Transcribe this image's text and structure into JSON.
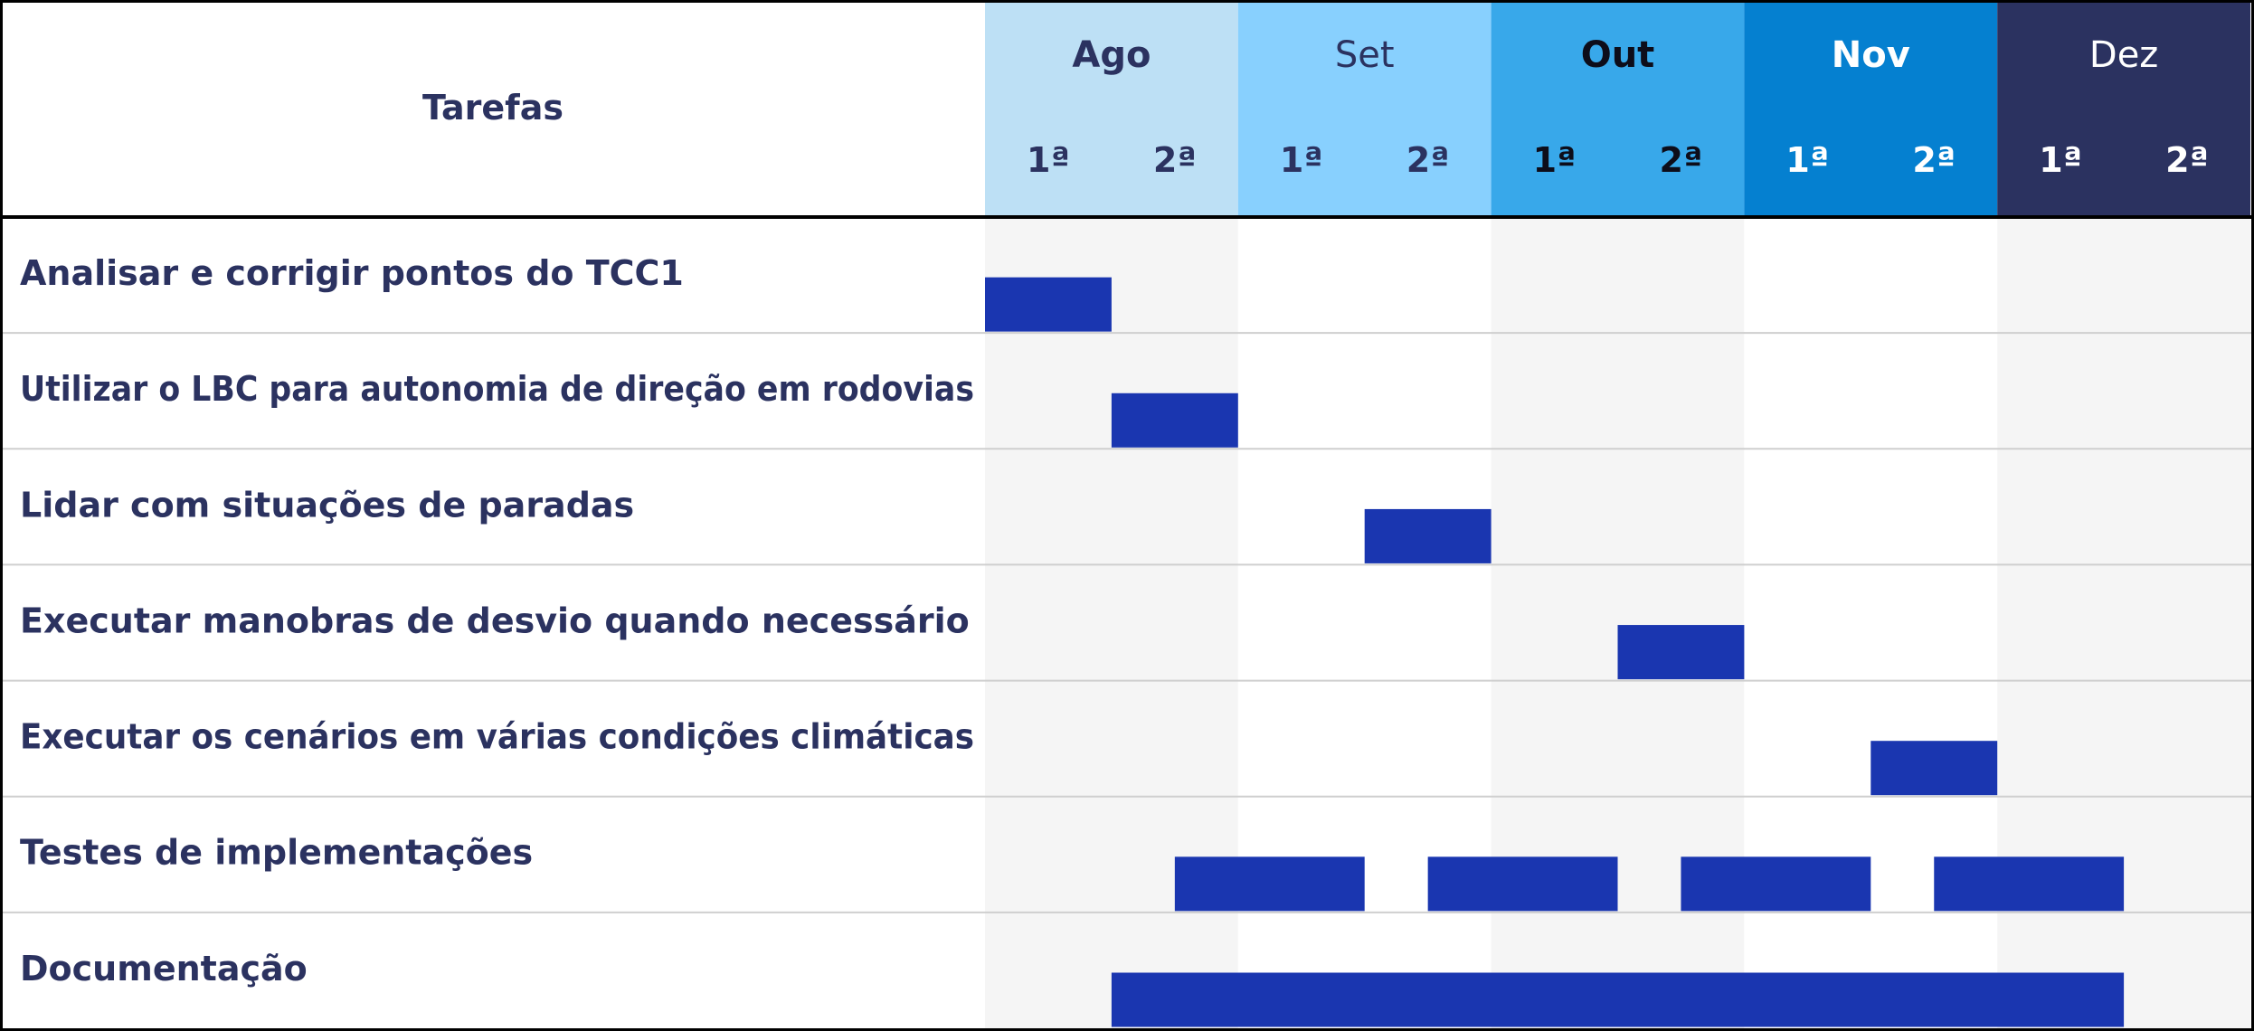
{
  "chart_data": {
    "type": "gantt",
    "task_header": "Tarefas",
    "months": [
      {
        "label": "Ago",
        "color": "#bde0f5",
        "text_color": "#2b3260",
        "bold": true
      },
      {
        "label": "Set",
        "color": "#88d0fe",
        "text_color": "#2b3260",
        "bold": false
      },
      {
        "label": "Out",
        "color": "#38a8ea",
        "text_color": "#0d0d1a",
        "bold": true
      },
      {
        "label": "Nov",
        "color": "#0580d0",
        "text_color": "#ffffff",
        "bold": true
      },
      {
        "label": "Dez",
        "color": "#2b3260",
        "text_color": "#ffffff",
        "bold": false
      }
    ],
    "halves": [
      "1ª",
      "2ª"
    ],
    "tasks": [
      {
        "label": "Analisar e corrigir pontos do TCC1",
        "bars": [
          [
            0,
            1
          ]
        ]
      },
      {
        "label": "Utilizar o LBC para autonomia de direção em rodovias",
        "bars": [
          [
            1,
            2
          ]
        ]
      },
      {
        "label": "Lidar com situações de paradas",
        "bars": [
          [
            3,
            4
          ]
        ]
      },
      {
        "label": "Executar manobras de desvio quando necessário",
        "bars": [
          [
            5,
            6
          ]
        ]
      },
      {
        "label": "Executar os cenários em várias condições climáticas",
        "bars": [
          [
            7,
            8
          ]
        ]
      },
      {
        "label": "Testes de implementações",
        "bars": [
          [
            1.5,
            3
          ],
          [
            3.5,
            5
          ],
          [
            5.5,
            7
          ],
          [
            7.5,
            9
          ]
        ]
      },
      {
        "label": "Documentação",
        "bars": [
          [
            1,
            9
          ]
        ]
      }
    ],
    "colors": {
      "bar": "#1a36b0",
      "label_text": "#2b3260",
      "stripe": "#f5f5f5",
      "row_line": "#cfcfcf",
      "border": "#000000"
    }
  }
}
